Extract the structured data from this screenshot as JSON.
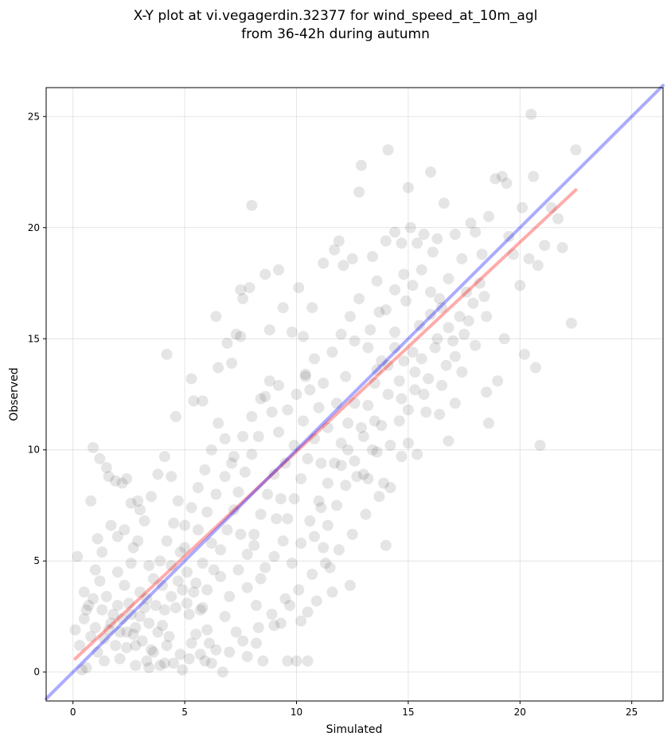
{
  "chart_data": {
    "type": "scatter",
    "title_line1": "X-Y plot at vi.vegagerdin.32377 for wind_speed_at_10m_agl",
    "title_line2": "from 36-42h during autumn",
    "xlabel": "Simulated",
    "ylabel": "Observed",
    "xlim": [
      -1.2,
      26.4
    ],
    "ylim": [
      -1.3,
      26.3
    ],
    "xticks": [
      0,
      5,
      10,
      15,
      20,
      25
    ],
    "yticks": [
      0,
      5,
      10,
      15,
      20,
      25
    ],
    "grid": true,
    "point_color": "#000000",
    "point_opacity": 0.1,
    "identity_line": {
      "color": "#0000ff",
      "from": [
        -1.2,
        -1.2
      ],
      "to": [
        26.4,
        26.4
      ]
    },
    "regression_line": {
      "color": "#ff0000",
      "from": [
        0.1,
        0.6
      ],
      "to": [
        22.5,
        21.7
      ]
    },
    "points": [
      [
        0.1,
        1.9
      ],
      [
        0.3,
        1.2
      ],
      [
        0.4,
        0.1
      ],
      [
        0.2,
        5.2
      ],
      [
        0.5,
        3.6
      ],
      [
        0.6,
        2.8
      ],
      [
        0.8,
        7.7
      ],
      [
        0.9,
        10.1
      ],
      [
        1.1,
        6.0
      ],
      [
        1.2,
        9.6
      ],
      [
        1.5,
        9.2
      ],
      [
        1.6,
        8.8
      ],
      [
        1.9,
        8.6
      ],
      [
        2.2,
        8.5
      ],
      [
        2.4,
        8.7
      ],
      [
        2.6,
        7.6
      ],
      [
        2.9,
        7.7
      ],
      [
        3.0,
        7.3
      ],
      [
        1.0,
        4.6
      ],
      [
        1.3,
        5.4
      ],
      [
        1.7,
        6.6
      ],
      [
        2.0,
        6.1
      ],
      [
        2.3,
        6.4
      ],
      [
        0.6,
        0.2
      ],
      [
        1.4,
        0.5
      ],
      [
        2.1,
        0.6
      ],
      [
        2.8,
        0.3
      ],
      [
        3.3,
        0.5
      ],
      [
        3.4,
        0.2
      ],
      [
        4.1,
        0.4
      ],
      [
        4.5,
        0.4
      ],
      [
        4.9,
        0.1
      ],
      [
        5.2,
        0.6
      ],
      [
        5.9,
        0.5
      ],
      [
        6.2,
        0.4
      ],
      [
        6.7,
        0.0
      ],
      [
        4.6,
        11.5
      ],
      [
        4.2,
        14.3
      ],
      [
        5.8,
        12.2
      ],
      [
        5.4,
        12.2
      ],
      [
        5.3,
        13.2
      ],
      [
        6.4,
        16.0
      ],
      [
        6.5,
        13.7
      ],
      [
        6.9,
        14.8
      ],
      [
        7.1,
        13.9
      ],
      [
        7.3,
        15.2
      ],
      [
        7.5,
        17.2
      ],
      [
        7.6,
        16.8
      ],
      [
        7.5,
        15.1
      ],
      [
        7.9,
        17.3
      ],
      [
        8.0,
        21.0
      ],
      [
        8.6,
        17.9
      ],
      [
        8.8,
        15.4
      ],
      [
        9.2,
        18.1
      ],
      [
        9.4,
        16.4
      ],
      [
        9.8,
        15.3
      ],
      [
        10.1,
        17.3
      ],
      [
        10.3,
        15.1
      ],
      [
        10.4,
        13.4
      ],
      [
        10.7,
        16.4
      ],
      [
        11.2,
        18.4
      ],
      [
        11.7,
        19.0
      ],
      [
        11.9,
        19.4
      ],
      [
        12.1,
        18.3
      ],
      [
        12.5,
        18.6
      ],
      [
        12.8,
        21.6
      ],
      [
        12.9,
        22.8
      ],
      [
        13.4,
        18.7
      ],
      [
        13.6,
        17.6
      ],
      [
        14.0,
        19.4
      ],
      [
        14.1,
        23.5
      ],
      [
        14.4,
        19.8
      ],
      [
        14.7,
        19.3
      ],
      [
        15.0,
        21.8
      ],
      [
        15.1,
        20.0
      ],
      [
        15.4,
        19.3
      ],
      [
        15.7,
        19.7
      ],
      [
        16.0,
        22.5
      ],
      [
        16.1,
        18.9
      ],
      [
        16.3,
        19.5
      ],
      [
        16.6,
        21.1
      ],
      [
        16.8,
        17.7
      ],
      [
        17.1,
        19.7
      ],
      [
        17.4,
        18.6
      ],
      [
        17.6,
        17.1
      ],
      [
        17.8,
        20.2
      ],
      [
        18.0,
        19.8
      ],
      [
        18.3,
        18.8
      ],
      [
        18.5,
        16.0
      ],
      [
        18.6,
        20.5
      ],
      [
        18.9,
        22.2
      ],
      [
        19.2,
        22.3
      ],
      [
        19.4,
        22.0
      ],
      [
        19.5,
        19.6
      ],
      [
        19.7,
        18.8
      ],
      [
        20.0,
        17.4
      ],
      [
        20.1,
        20.9
      ],
      [
        20.2,
        14.3
      ],
      [
        20.4,
        18.6
      ],
      [
        20.5,
        25.1
      ],
      [
        20.6,
        22.3
      ],
      [
        20.7,
        13.7
      ],
      [
        20.8,
        18.3
      ],
      [
        20.9,
        10.2
      ],
      [
        21.1,
        19.2
      ],
      [
        21.4,
        20.9
      ],
      [
        21.7,
        20.4
      ],
      [
        21.9,
        19.1
      ],
      [
        22.3,
        15.7
      ],
      [
        22.5,
        23.5
      ],
      [
        19.3,
        15.0
      ],
      [
        19.0,
        13.1
      ],
      [
        18.5,
        12.6
      ],
      [
        18.6,
        11.2
      ],
      [
        17.1,
        12.1
      ],
      [
        16.8,
        10.4
      ],
      [
        16.4,
        11.6
      ],
      [
        15.8,
        11.7
      ],
      [
        14.7,
        9.7
      ],
      [
        14.2,
        8.3
      ],
      [
        13.9,
        8.5
      ],
      [
        13.6,
        9.9
      ],
      [
        13.2,
        8.7
      ],
      [
        12.7,
        8.8
      ],
      [
        12.4,
        3.9
      ],
      [
        11.6,
        3.6
      ],
      [
        11.2,
        5.6
      ],
      [
        10.9,
        3.2
      ],
      [
        10.5,
        2.7
      ],
      [
        10.2,
        2.3
      ],
      [
        10.0,
        0.5
      ],
      [
        10.5,
        0.5
      ],
      [
        9.6,
        0.5
      ],
      [
        8.5,
        0.5
      ],
      [
        7.8,
        0.7
      ],
      [
        7.3,
        1.8
      ],
      [
        8.2,
        1.3
      ],
      [
        9.0,
        2.1
      ],
      [
        9.5,
        3.3
      ],
      [
        6.8,
        2.5
      ],
      [
        6.0,
        1.9
      ],
      [
        14.0,
        5.7
      ],
      [
        8.4,
        4.2
      ],
      [
        8.1,
        5.7
      ],
      [
        9.1,
        6.9
      ],
      [
        11.5,
        4.7
      ],
      [
        12.3,
        10.0
      ],
      [
        11.1,
        7.4
      ],
      [
        10.8,
        6.1
      ],
      [
        12.0,
        9.3
      ],
      [
        13.0,
        10.6
      ],
      [
        13.5,
        11.3
      ],
      [
        14.1,
        12.5
      ],
      [
        14.6,
        13.1
      ],
      [
        15.2,
        14.4
      ],
      [
        15.5,
        15.6
      ],
      [
        16.0,
        16.1
      ],
      [
        16.3,
        15.0
      ],
      [
        16.5,
        16.4
      ],
      [
        16.7,
        13.8
      ],
      [
        17.0,
        14.9
      ],
      [
        17.3,
        16.0
      ],
      [
        17.5,
        15.2
      ],
      [
        17.9,
        16.6
      ],
      [
        18.2,
        17.5
      ],
      [
        18.4,
        16.9
      ],
      [
        15.7,
        12.5
      ],
      [
        15.3,
        13.5
      ],
      [
        14.8,
        14.0
      ],
      [
        14.4,
        15.3
      ],
      [
        14.9,
        16.7
      ],
      [
        13.7,
        16.2
      ],
      [
        13.3,
        15.4
      ],
      [
        12.6,
        14.9
      ],
      [
        12.2,
        13.3
      ],
      [
        11.8,
        12.1
      ],
      [
        11.4,
        11.0
      ],
      [
        11.0,
        11.9
      ],
      [
        10.6,
        12.7
      ],
      [
        10.3,
        11.3
      ],
      [
        9.9,
        10.2
      ],
      [
        9.5,
        9.4
      ],
      [
        9.2,
        10.8
      ],
      [
        8.9,
        11.7
      ],
      [
        8.6,
        12.4
      ],
      [
        8.3,
        10.6
      ],
      [
        8.0,
        9.8
      ],
      [
        7.7,
        9.0
      ],
      [
        7.4,
        8.1
      ],
      [
        7.1,
        9.4
      ],
      [
        6.8,
        10.5
      ],
      [
        6.5,
        11.2
      ],
      [
        6.2,
        10.0
      ],
      [
        5.9,
        9.1
      ],
      [
        5.6,
        8.3
      ],
      [
        5.3,
        7.4
      ],
      [
        5.0,
        6.6
      ],
      [
        4.7,
        7.7
      ],
      [
        4.4,
        8.8
      ],
      [
        4.1,
        9.7
      ],
      [
        3.8,
        8.9
      ],
      [
        3.5,
        7.9
      ],
      [
        3.2,
        6.8
      ],
      [
        2.9,
        5.9
      ],
      [
        2.6,
        4.9
      ],
      [
        2.3,
        3.9
      ],
      [
        2.0,
        3.0
      ],
      [
        1.7,
        2.2
      ],
      [
        1.4,
        1.5
      ],
      [
        1.1,
        0.9
      ],
      [
        0.8,
        1.6
      ],
      [
        0.5,
        2.4
      ],
      [
        0.9,
        3.3
      ],
      [
        1.2,
        4.1
      ],
      [
        1.5,
        3.4
      ],
      [
        1.8,
        2.6
      ],
      [
        2.1,
        1.8
      ],
      [
        2.4,
        1.1
      ],
      [
        2.7,
        1.7
      ],
      [
        3.0,
        2.5
      ],
      [
        3.3,
        3.3
      ],
      [
        3.6,
        4.2
      ],
      [
        3.9,
        5.0
      ],
      [
        4.2,
        5.9
      ],
      [
        4.5,
        6.7
      ],
      [
        4.8,
        5.4
      ],
      [
        5.1,
        4.5
      ],
      [
        5.4,
        3.6
      ],
      [
        5.7,
        2.8
      ],
      [
        6.0,
        3.7
      ],
      [
        6.3,
        4.6
      ],
      [
        6.6,
        5.5
      ],
      [
        6.9,
        6.4
      ],
      [
        7.2,
        7.3
      ],
      [
        7.5,
        6.2
      ],
      [
        7.8,
        5.3
      ],
      [
        8.1,
        6.2
      ],
      [
        8.4,
        7.1
      ],
      [
        8.7,
        8.0
      ],
      [
        9.0,
        8.9
      ],
      [
        9.3,
        7.8
      ],
      [
        9.6,
        6.9
      ],
      [
        9.9,
        7.8
      ],
      [
        10.2,
        8.7
      ],
      [
        10.5,
        9.6
      ],
      [
        10.8,
        10.5
      ],
      [
        11.1,
        9.4
      ],
      [
        11.4,
        8.5
      ],
      [
        11.7,
        9.4
      ],
      [
        12.0,
        10.3
      ],
      [
        12.3,
        11.2
      ],
      [
        12.6,
        12.1
      ],
      [
        12.9,
        11.0
      ],
      [
        13.2,
        12.0
      ],
      [
        13.5,
        13.0
      ],
      [
        13.8,
        14.0
      ],
      [
        14.1,
        13.8
      ],
      [
        14.4,
        14.6
      ],
      [
        14.7,
        12.3
      ],
      [
        15.0,
        11.8
      ],
      [
        15.3,
        12.7
      ],
      [
        15.6,
        14.1
      ],
      [
        15.9,
        13.2
      ],
      [
        16.2,
        14.6
      ],
      [
        16.5,
        12.9
      ],
      [
        16.8,
        15.5
      ],
      [
        17.1,
        14.2
      ],
      [
        17.4,
        13.5
      ],
      [
        17.7,
        15.8
      ],
      [
        18.0,
        14.7
      ],
      [
        1.3,
        2.8
      ],
      [
        1.6,
        1.9
      ],
      [
        1.9,
        1.2
      ],
      [
        2.2,
        2.4
      ],
      [
        2.5,
        3.1
      ],
      [
        2.8,
        2.0
      ],
      [
        3.1,
        1.4
      ],
      [
        3.4,
        2.2
      ],
      [
        3.7,
        3.0
      ],
      [
        4.0,
        2.1
      ],
      [
        4.3,
        1.6
      ],
      [
        4.6,
        2.9
      ],
      [
        4.9,
        3.7
      ],
      [
        5.2,
        2.6
      ],
      [
        5.5,
        1.7
      ],
      [
        5.8,
        2.9
      ],
      [
        6.1,
        1.3
      ],
      [
        1.0,
        2.0
      ],
      [
        0.7,
        3.0
      ],
      [
        2.0,
        4.5
      ],
      [
        2.7,
        5.6
      ],
      [
        3.4,
        4.8
      ],
      [
        4.0,
        3.9
      ],
      [
        4.4,
        4.8
      ],
      [
        5.0,
        5.6
      ],
      [
        5.6,
        6.4
      ],
      [
        6.0,
        7.2
      ],
      [
        6.4,
        8.0
      ],
      [
        6.8,
        8.8
      ],
      [
        7.2,
        9.7
      ],
      [
        7.6,
        10.6
      ],
      [
        8.0,
        11.5
      ],
      [
        8.4,
        12.3
      ],
      [
        8.8,
        13.1
      ],
      [
        9.2,
        12.9
      ],
      [
        9.6,
        11.8
      ],
      [
        10.0,
        12.5
      ],
      [
        10.4,
        13.3
      ],
      [
        10.8,
        14.1
      ],
      [
        11.2,
        13.0
      ],
      [
        11.6,
        14.4
      ],
      [
        12.0,
        15.2
      ],
      [
        12.4,
        16.0
      ],
      [
        12.8,
        16.8
      ],
      [
        13.2,
        14.6
      ],
      [
        13.6,
        13.6
      ],
      [
        14.0,
        16.3
      ],
      [
        14.4,
        17.2
      ],
      [
        14.8,
        17.9
      ],
      [
        15.2,
        17.4
      ],
      [
        15.6,
        18.1
      ],
      [
        16.0,
        17.1
      ],
      [
        16.4,
        16.8
      ],
      [
        2.4,
        1.8
      ],
      [
        2.6,
        2.6
      ],
      [
        2.8,
        1.2
      ],
      [
        3.0,
        3.6
      ],
      [
        3.2,
        2.9
      ],
      [
        3.5,
        1.0
      ],
      [
        3.8,
        1.8
      ],
      [
        4.1,
        2.8
      ],
      [
        4.4,
        3.4
      ],
      [
        4.7,
        4.1
      ],
      [
        5.1,
        3.1
      ],
      [
        5.5,
        4.0
      ],
      [
        5.8,
        4.9
      ],
      [
        6.2,
        5.8
      ],
      [
        6.6,
        4.3
      ],
      [
        7.0,
        3.4
      ],
      [
        7.4,
        4.6
      ],
      [
        7.8,
        3.8
      ],
      [
        8.2,
        3.0
      ],
      [
        8.6,
        4.7
      ],
      [
        9.0,
        5.2
      ],
      [
        9.4,
        5.9
      ],
      [
        9.8,
        4.9
      ],
      [
        10.2,
        5.8
      ],
      [
        10.6,
        6.8
      ],
      [
        11.0,
        7.7
      ],
      [
        11.4,
        6.6
      ],
      [
        11.8,
        7.5
      ],
      [
        12.2,
        8.4
      ],
      [
        12.6,
        9.5
      ],
      [
        13.0,
        8.9
      ],
      [
        13.4,
        10.0
      ],
      [
        13.8,
        11.1
      ],
      [
        14.2,
        10.2
      ],
      [
        14.6,
        11.3
      ],
      [
        15.0,
        10.3
      ],
      [
        15.4,
        9.8
      ],
      [
        3.6,
        0.9
      ],
      [
        3.9,
        0.3
      ],
      [
        4.2,
        1.2
      ],
      [
        4.8,
        0.8
      ],
      [
        5.3,
        1.3
      ],
      [
        5.7,
        0.8
      ],
      [
        6.4,
        1.0
      ],
      [
        7.0,
        0.9
      ],
      [
        7.6,
        1.4
      ],
      [
        8.3,
        2.0
      ],
      [
        8.9,
        2.6
      ],
      [
        9.3,
        2.2
      ],
      [
        9.7,
        3.0
      ],
      [
        10.1,
        3.7
      ],
      [
        10.7,
        4.4
      ],
      [
        11.3,
        4.9
      ],
      [
        11.9,
        5.5
      ],
      [
        12.5,
        6.2
      ],
      [
        13.1,
        7.1
      ],
      [
        13.7,
        7.9
      ]
    ]
  }
}
